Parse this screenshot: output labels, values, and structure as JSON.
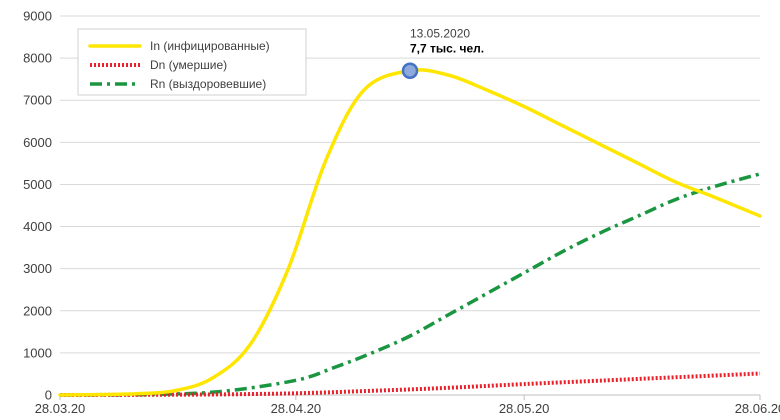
{
  "chart_data": {
    "type": "line",
    "title": "",
    "xlabel": "",
    "ylabel": "",
    "ylim": [
      0,
      9000
    ],
    "y_ticks": [
      0,
      1000,
      2000,
      3000,
      4000,
      5000,
      6000,
      7000,
      8000,
      9000
    ],
    "x_ticks": [
      "28.03.20",
      "28.04.20",
      "28.05.20",
      "28.06.20"
    ],
    "grid": "horizontal",
    "legend_position": "top-left",
    "series": [
      {
        "name": "In (инфицированные)",
        "color": "#FFE600",
        "style": "solid",
        "x": [
          "28.03.20",
          "02.04.20",
          "07.04.20",
          "12.04.20",
          "17.04.20",
          "22.04.20",
          "27.04.20",
          "02.05.20",
          "07.05.20",
          "13.05.20",
          "18.05.20",
          "23.05.20",
          "28.05.20",
          "02.06.20",
          "07.06.20",
          "12.06.20",
          "17.06.20",
          "22.06.20",
          "28.06.20"
        ],
        "y": [
          0,
          10,
          30,
          100,
          400,
          1200,
          3000,
          5600,
          7250,
          7700,
          7600,
          7250,
          6850,
          6400,
          5950,
          5500,
          5050,
          4700,
          4250
        ]
      },
      {
        "name": "Dn (умершие)",
        "color": "#E8202A",
        "style": "dotted",
        "x": [
          "28.03.20",
          "08.04.20",
          "18.04.20",
          "28.04.20",
          "08.05.20",
          "18.05.20",
          "28.05.20",
          "08.06.20",
          "18.06.20",
          "28.06.20"
        ],
        "y": [
          0,
          5,
          15,
          40,
          100,
          170,
          260,
          350,
          430,
          510
        ]
      },
      {
        "name": "Rn (выздоровевшие)",
        "color": "#1A9641",
        "style": "dash-dot",
        "x": [
          "28.03.20",
          "08.04.20",
          "18.04.20",
          "28.04.20",
          "03.05.20",
          "08.05.20",
          "13.05.20",
          "18.05.20",
          "23.05.20",
          "28.05.20",
          "02.06.20",
          "07.06.20",
          "12.06.20",
          "17.06.20",
          "22.06.20",
          "28.06.20"
        ],
        "y": [
          0,
          10,
          80,
          350,
          650,
          1000,
          1400,
          1900,
          2400,
          2900,
          3400,
          3850,
          4250,
          4650,
          4950,
          5250
        ]
      }
    ],
    "annotation": {
      "date": "13.05.2020",
      "value": "7,7 тыс. чел.",
      "x": "13.05.20",
      "y": 7700,
      "marker_color": "#4472C4"
    }
  }
}
